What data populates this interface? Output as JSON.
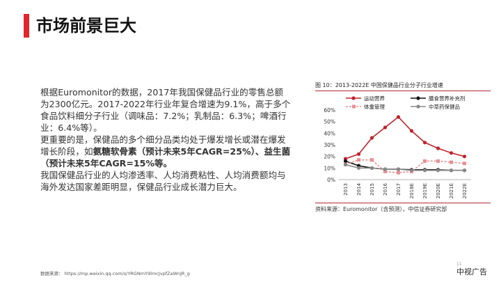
{
  "slide": {
    "title": "市场前景巨大",
    "paragraph1": "根据Euromonitor的数据，2017年我国保健品行业的零售总额为2300亿元。2017-2022年行业年复合增速为9.1%，高于多个食品饮料细分子行业（调味品：7.2%；乳制品：6.3%；啤酒行业：6.4%等）。",
    "paragraph2_plain": "更重要的是，保健品的多个细分品类均处于爆发增长或潜在爆发增长阶段，如",
    "paragraph2_bold": "氨糖软骨素（预计未来5年CAGR=25%）、益生菌（预计未来5年CAGR=15%等。",
    "paragraph3": "我国保健品行业的人均渗透率、人均消费粘性、人均消费额均与海外发达国家差距明显，保健品行业成长潜力巨大。",
    "footer_source": "数据来源：  https://mp.weixin.qq.com/s/YRGNmY9lmcJvpfZaWnJR_g",
    "watermark": "中视广告",
    "page_number": "11"
  },
  "chart_data": {
    "type": "line",
    "title": "图 10：2013-2022E 中国保健品行业分子行业增速",
    "source": "资料来源：Euromonitor（含预测），中信证券研究部",
    "categories": [
      "2013",
      "2014",
      "2015",
      "2016",
      "2017",
      "2018E",
      "2019E",
      "2020E",
      "2021E",
      "2022E"
    ],
    "ylim": [
      0,
      60
    ],
    "yticks": [
      "0%",
      "10%",
      "20%",
      "30%",
      "40%",
      "50%",
      "60%"
    ],
    "series": [
      {
        "name": "运动营养",
        "color": "#c0232c",
        "style": "solid",
        "marker": "circle",
        "values": [
          18,
          22,
          36,
          45,
          54,
          42,
          32,
          27,
          23,
          20
        ]
      },
      {
        "name": "膳食营养补充剂",
        "color": "#111111",
        "style": "solid",
        "marker": "circle",
        "values": [
          16,
          12,
          10,
          9,
          9,
          8.5,
          8.5,
          8.5,
          8,
          8
        ]
      },
      {
        "name": "体重管理",
        "color": "#e78f94",
        "style": "dashed",
        "marker": "square",
        "values": [
          13,
          17,
          17,
          7,
          6,
          7,
          16,
          16,
          15,
          14
        ]
      },
      {
        "name": "中草药保健品",
        "color": "#888888",
        "style": "solid",
        "marker": "circle",
        "values": [
          13,
          10,
          10,
          9,
          9,
          8,
          8,
          8,
          8,
          8
        ]
      }
    ],
    "legend_position": "top"
  }
}
